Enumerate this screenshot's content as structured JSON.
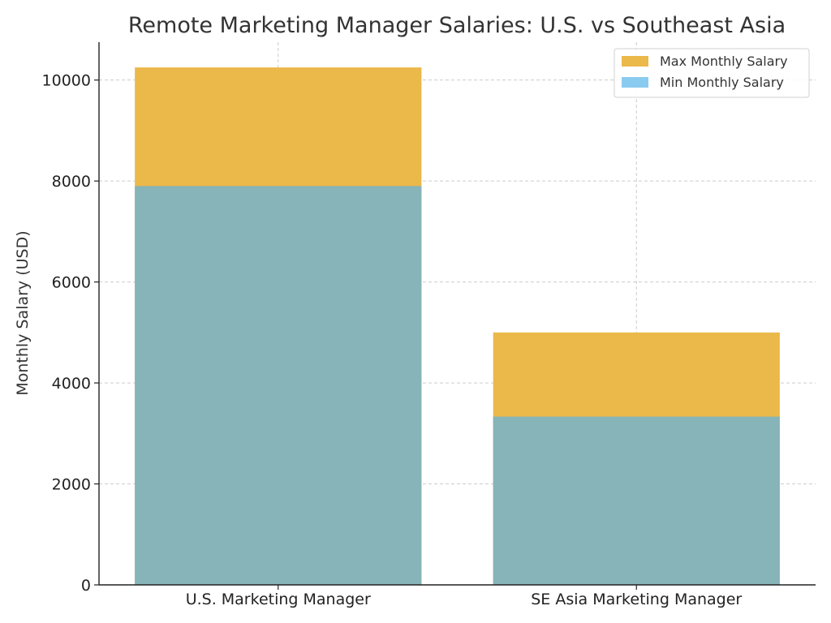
{
  "chart_data": {
    "type": "bar",
    "stacked": "overlay",
    "title": "Remote Marketing Manager Salaries: U.S. vs Southeast Asia",
    "xlabel": "",
    "ylabel": "Monthly Salary (USD)",
    "categories": [
      "U.S. Marketing Manager",
      "SE Asia Marketing Manager"
    ],
    "series": [
      {
        "name": "Max Monthly Salary",
        "values": [
          10250,
          5000
        ],
        "color": "#EBB84A"
      },
      {
        "name": "Min Monthly Salary",
        "values": [
          7900,
          3333
        ],
        "color": "#8ACBF0"
      }
    ],
    "overlap_color": "#86B4B8",
    "ylim": [
      0,
      10750
    ],
    "yticks": [
      0,
      2000,
      4000,
      6000,
      8000,
      10000
    ],
    "grid": true,
    "legend": "top-right"
  }
}
